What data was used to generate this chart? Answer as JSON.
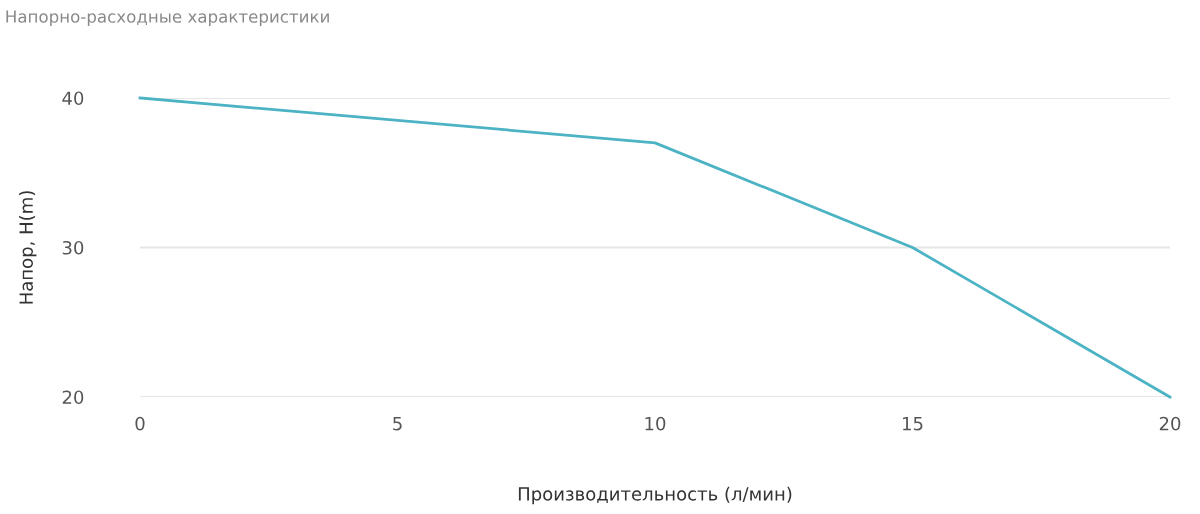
{
  "chart_data": {
    "type": "line",
    "title": "Напорно-расходные характеристики",
    "xlabel": "Производительность (л/мин)",
    "ylabel": "Напор, H(m)",
    "x": [
      0,
      10,
      15,
      20
    ],
    "series": [
      {
        "color": "#4bb3c4",
        "values": [
          40,
          37,
          30,
          20
        ]
      }
    ],
    "xlim": [
      0,
      20
    ],
    "xticks": [
      0,
      5,
      10,
      15,
      20
    ],
    "ylim": [
      20,
      40
    ],
    "yticks": [
      20,
      30,
      40
    ],
    "grid": "y",
    "marker": "none",
    "line_style": "solid"
  }
}
